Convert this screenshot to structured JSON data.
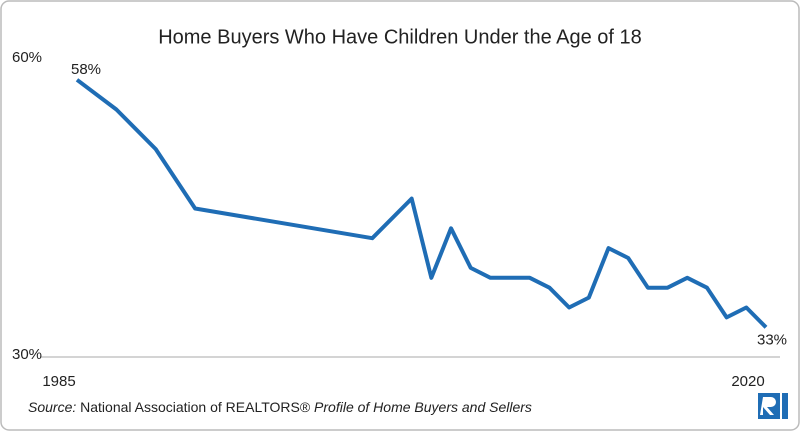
{
  "chart_data": {
    "type": "line",
    "title": "Home Buyers Who Have Children Under the Age of 18",
    "x": [
      1985,
      1987,
      1989,
      1991,
      2000,
      2002,
      2003,
      2004,
      2005,
      2006,
      2007,
      2008,
      2009,
      2010,
      2011,
      2012,
      2013,
      2014,
      2015,
      2016,
      2017,
      2018,
      2019,
      2020
    ],
    "values": [
      58,
      55,
      51,
      45,
      42,
      46,
      38,
      43,
      39,
      38,
      38,
      38,
      37,
      35,
      36,
      41,
      40,
      37,
      37,
      38,
      37,
      34,
      35,
      33
    ],
    "value_labels": [
      "58%",
      null,
      null,
      null,
      null,
      null,
      null,
      null,
      null,
      null,
      null,
      null,
      null,
      null,
      null,
      null,
      null,
      null,
      null,
      null,
      null,
      null,
      null,
      "33%"
    ],
    "color": "#1f6db5",
    "xlim": [
      1985,
      2020
    ],
    "xticks": [
      1985,
      2020
    ],
    "ylim": [
      30,
      60
    ],
    "yticks": [
      {
        "value": 30,
        "label": "30%"
      },
      {
        "value": 60,
        "label": "60%"
      }
    ],
    "grid": false,
    "source": {
      "prefix": "Source:",
      "publisher": "National Association of REALTORS®",
      "publication": "Profile of Home Buyers and Sellers"
    }
  }
}
